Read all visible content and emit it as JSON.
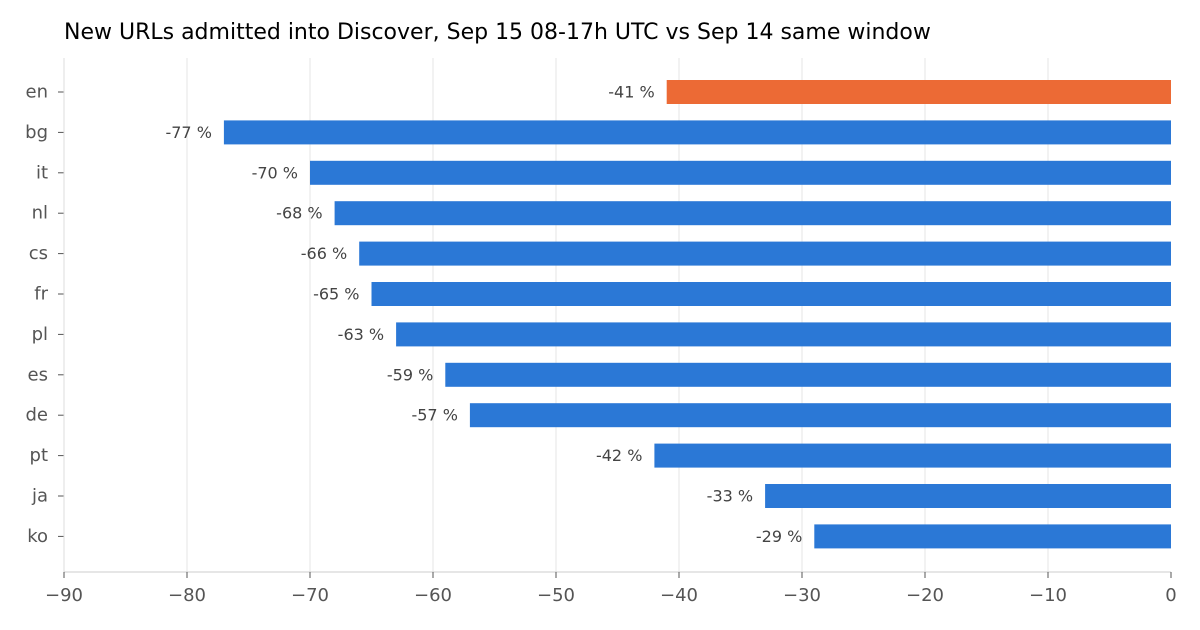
{
  "chart_data": {
    "type": "bar",
    "orientation": "horizontal",
    "title": "New URLs admitted into Discover, Sep 15 08-17h UTC vs Sep 14 same window",
    "categories": [
      "en",
      "bg",
      "it",
      "nl",
      "cs",
      "fr",
      "pl",
      "es",
      "de",
      "pt",
      "ja",
      "ko"
    ],
    "values": [
      -41,
      -77,
      -70,
      -68,
      -66,
      -65,
      -63,
      -59,
      -57,
      -42,
      -33,
      -29
    ],
    "data_labels": [
      "-41 %",
      "-77 %",
      "-70 %",
      "-68 %",
      "-66 %",
      "-65 %",
      "-63 %",
      "-59 %",
      "-57 %",
      "-42 %",
      "-33 %",
      "-29 %"
    ],
    "highlight": "en",
    "colors": {
      "bar": "#2b78d6",
      "highlight": "#ec6a35"
    },
    "xlim": [
      -90,
      0
    ],
    "xticks": [
      -90,
      -80,
      -70,
      -60,
      -50,
      -40,
      -30,
      -20,
      -10,
      0
    ],
    "xtick_labels": [
      "−90",
      "−80",
      "−70",
      "−60",
      "−50",
      "−40",
      "−30",
      "−20",
      "−10",
      "0"
    ],
    "xlabel": "",
    "ylabel": "",
    "grid": "vertical"
  }
}
